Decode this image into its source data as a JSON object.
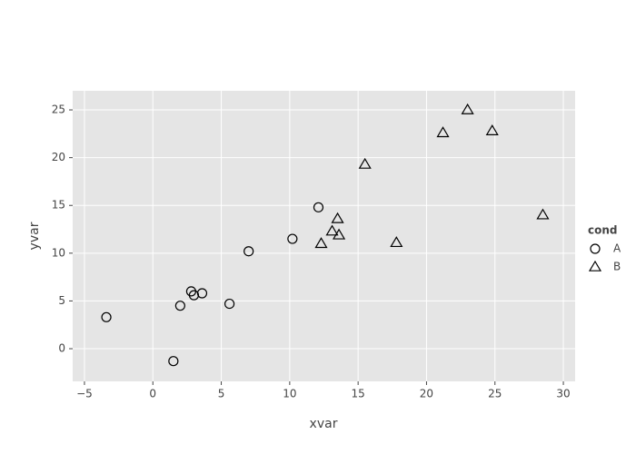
{
  "chart_data": {
    "type": "scatter",
    "x_label": "xvar",
    "y_label": "yvar",
    "xlim": [
      -5.86,
      30.86
    ],
    "ylim": [
      -3.42,
      27.0
    ],
    "xticks": [
      {
        "value": -5,
        "label": "−5"
      },
      0,
      5,
      10,
      15,
      20,
      25,
      30
    ],
    "yticks": [
      0,
      5,
      10,
      15,
      20,
      25
    ],
    "grid": true,
    "legend_title": "cond",
    "legend_position": "right",
    "series": [
      {
        "name": "A",
        "color": "#000000",
        "marker": "circle",
        "x": [
          -3.4,
          1.5,
          2.0,
          2.8,
          3.0,
          3.6,
          5.6,
          7.0,
          10.2,
          12.1
        ],
        "values": [
          3.3,
          -1.3,
          4.5,
          6.0,
          5.6,
          5.8,
          4.7,
          10.2,
          11.5,
          14.8
        ]
      },
      {
        "name": "B",
        "color": "#000000",
        "marker": "triangle",
        "x": [
          12.3,
          13.1,
          13.5,
          13.6,
          15.5,
          17.8,
          21.2,
          23.0,
          24.8,
          28.5
        ],
        "values": [
          11.0,
          12.3,
          13.6,
          11.9,
          19.3,
          11.1,
          22.6,
          25.0,
          22.8,
          14.0
        ]
      }
    ]
  }
}
